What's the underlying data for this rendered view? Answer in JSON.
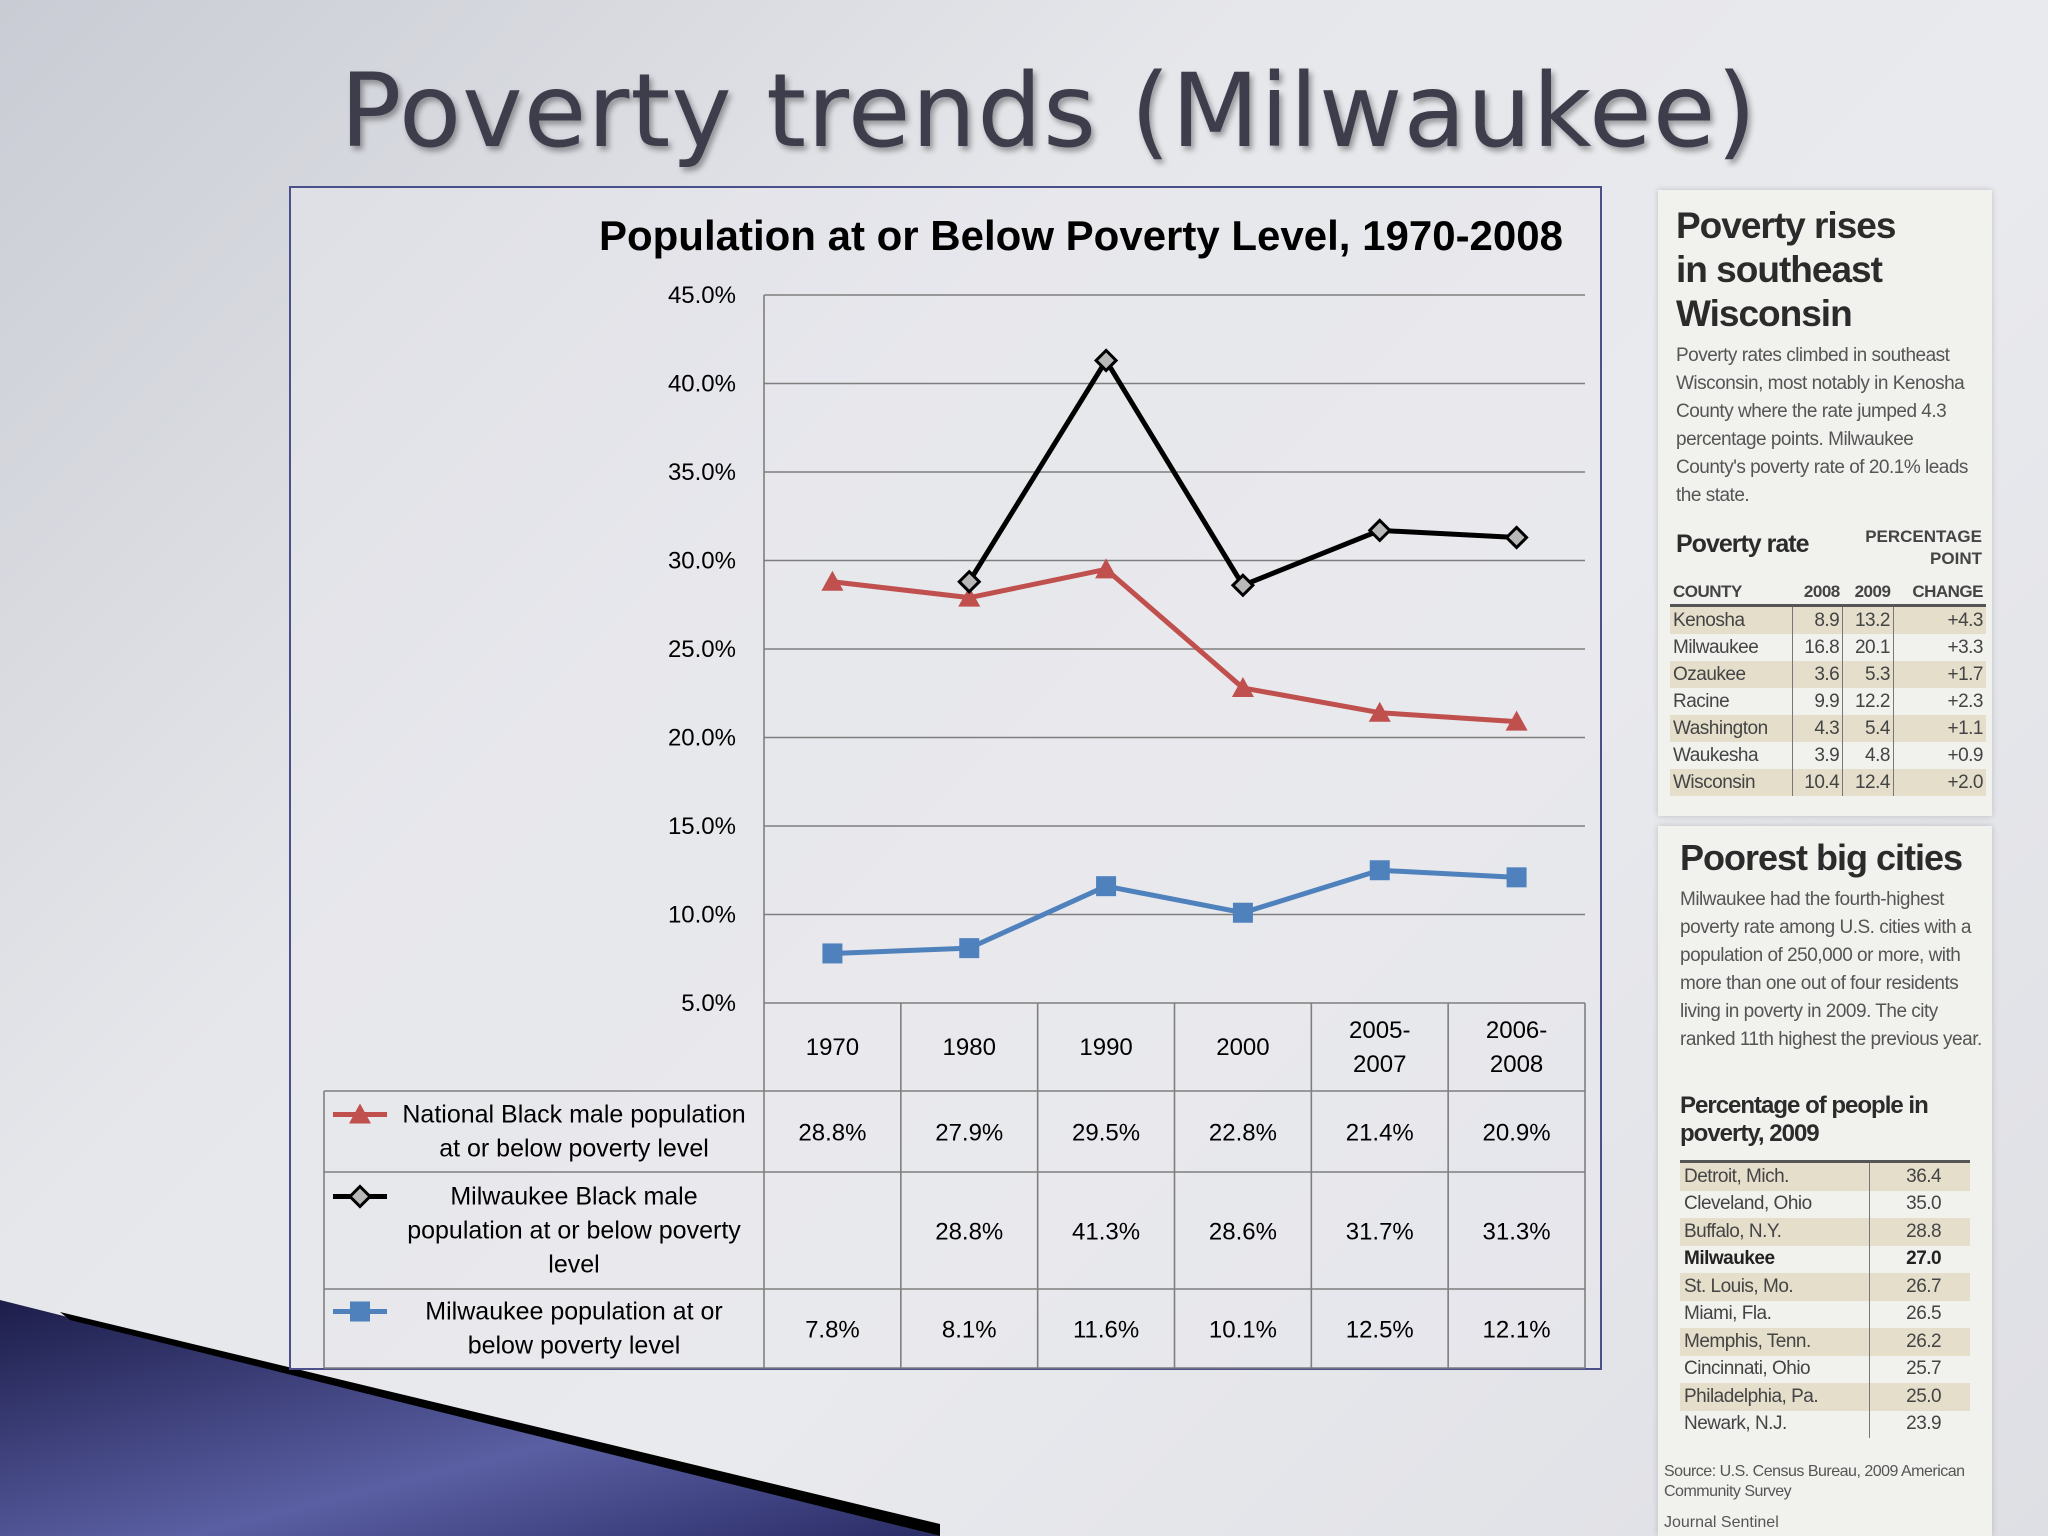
{
  "slide": {
    "title": "Poverty trends (Milwaukee)"
  },
  "chart_data": {
    "type": "line",
    "title": "Population at or Below Poverty Level, 1970-2008",
    "categories": [
      "1970",
      "1980",
      "1990",
      "2000",
      "2005-2007",
      "2006-2008"
    ],
    "category_lines": [
      [
        "1970"
      ],
      [
        "1980"
      ],
      [
        "1990"
      ],
      [
        "2000"
      ],
      [
        "2005-",
        "2007"
      ],
      [
        "2006-",
        "2008"
      ]
    ],
    "ylim": [
      5.0,
      45.0
    ],
    "yticks": [
      "45.0%",
      "40.0%",
      "35.0%",
      "30.0%",
      "25.0%",
      "20.0%",
      "15.0%",
      "10.0%",
      "5.0%"
    ],
    "grid": true,
    "legend": "data-table",
    "series": [
      {
        "name": "National Black male population at or below poverty level",
        "name_lines": [
          "National Black male population",
          "at or below poverty level"
        ],
        "values": [
          28.8,
          27.9,
          29.5,
          22.8,
          21.4,
          20.9
        ],
        "labels": [
          "28.8%",
          "27.9%",
          "29.5%",
          "22.8%",
          "21.4%",
          "20.9%"
        ],
        "color": "#c0504d",
        "marker": "triangle"
      },
      {
        "name": "Milwaukee Black male population at or below poverty level",
        "name_lines": [
          "Milwaukee Black male",
          "population at or below poverty",
          "level"
        ],
        "values": [
          null,
          28.8,
          41.3,
          28.6,
          31.7,
          31.3
        ],
        "labels": [
          "",
          "28.8%",
          "41.3%",
          "28.6%",
          "31.7%",
          "31.3%"
        ],
        "color": "#000000",
        "marker": "diamond"
      },
      {
        "name": "Milwaukee population at or below poverty level",
        "name_lines": [
          "Milwaukee population at or",
          "below poverty level"
        ],
        "values": [
          7.8,
          8.1,
          11.6,
          10.1,
          12.5,
          12.1
        ],
        "labels": [
          "7.8%",
          "8.1%",
          "11.6%",
          "10.1%",
          "12.5%",
          "12.1%"
        ],
        "color": "#4f81bd",
        "marker": "square"
      }
    ]
  },
  "clipping1": {
    "headline": [
      "Poverty rises",
      "in southeast",
      "Wisconsin"
    ],
    "body": "Poverty rates climbed in southeast Wisconsin, most notably in Kenosha County where the rate jumped 4.3 percentage points. Milwaukee County's poverty rate of 20.1% leads the state.",
    "table_title": "Poverty rate",
    "pct_header": [
      "PERCENTAGE",
      "POINT"
    ],
    "columns": [
      "COUNTY",
      "2008",
      "2009",
      "CHANGE"
    ],
    "rows": [
      [
        "Kenosha",
        "8.9",
        "13.2",
        "+4.3"
      ],
      [
        "Milwaukee",
        "16.8",
        "20.1",
        "+3.3"
      ],
      [
        "Ozaukee",
        "3.6",
        "5.3",
        "+1.7"
      ],
      [
        "Racine",
        "9.9",
        "12.2",
        "+2.3"
      ],
      [
        "Washington",
        "4.3",
        "5.4",
        "+1.1"
      ],
      [
        "Waukesha",
        "3.9",
        "4.8",
        "+0.9"
      ],
      [
        "Wisconsin",
        "10.4",
        "12.4",
        "+2.0"
      ]
    ]
  },
  "clipping2": {
    "headline": "Poorest big cities",
    "body": "Milwaukee had the fourth-highest poverty rate among U.S. cities with a population of 250,000 or more, with more than one out of four residents living in poverty in 2009. The city ranked 11th highest the previous year.",
    "table_title": "Percentage of people in poverty, 2009",
    "rows": [
      [
        "Detroit, Mich.",
        "36.4"
      ],
      [
        "Cleveland, Ohio",
        "35.0"
      ],
      [
        "Buffalo, N.Y.",
        "28.8"
      ],
      [
        "Milwaukee",
        "27.0"
      ],
      [
        "St. Louis, Mo.",
        "26.7"
      ],
      [
        "Miami, Fla.",
        "26.5"
      ],
      [
        "Memphis, Tenn.",
        "26.2"
      ],
      [
        "Cincinnati, Ohio",
        "25.7"
      ],
      [
        "Philadelphia, Pa.",
        "25.0"
      ],
      [
        "Newark, N.J.",
        "23.9"
      ]
    ],
    "source": "Source: U.S. Census Bureau, 2009 American Community Survey",
    "paper": "Journal Sentinel"
  }
}
